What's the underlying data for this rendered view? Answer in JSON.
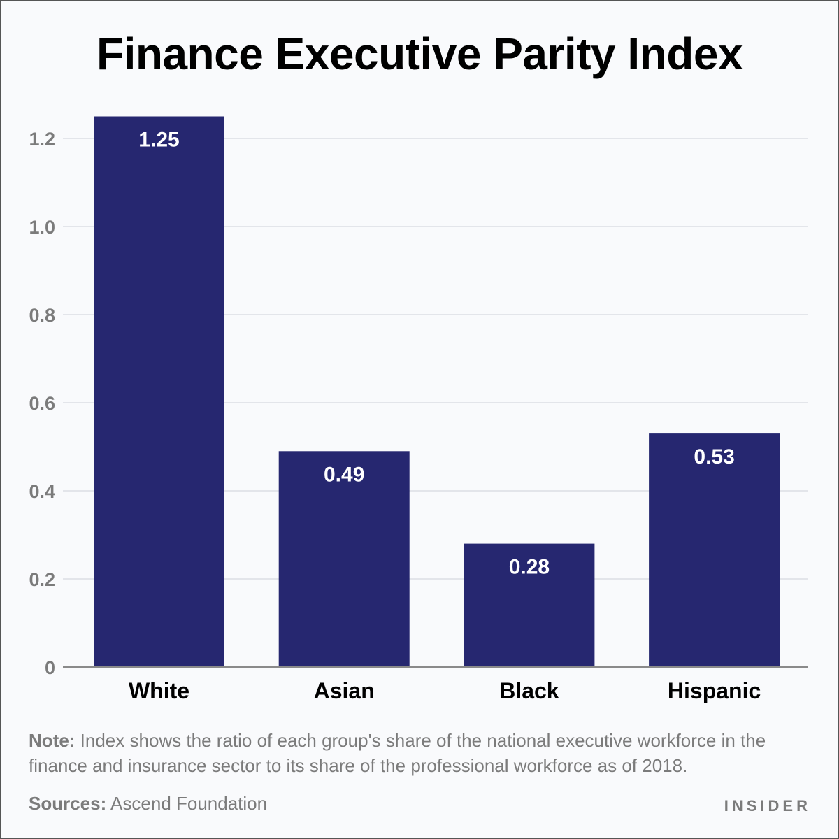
{
  "title": "Finance Executive Parity Index",
  "note": {
    "label": "Note:",
    "text": " Index shows the ratio of each group's share of the national executive workforce in the finance and insurance sector to its share of the professional workforce as of 2018."
  },
  "sources": {
    "label": "Sources:",
    "text": " Ascend Foundation"
  },
  "brand": "INSIDER",
  "chart_data": {
    "type": "bar",
    "title": "Finance Executive Parity Index",
    "categories": [
      "White",
      "Asian",
      "Black",
      "Hispanic"
    ],
    "values": [
      1.25,
      0.49,
      0.28,
      0.53
    ],
    "value_labels": [
      "1.25",
      "0.49",
      "0.28",
      "0.53"
    ],
    "ylim": [
      0,
      1.2
    ],
    "yticks": [
      0,
      0.2,
      0.4,
      0.6,
      0.8,
      1.0,
      1.2
    ],
    "ytick_labels": [
      "0",
      "0.2",
      "0.4",
      "0.6",
      "0.8",
      "1.0",
      "1.2"
    ],
    "xlabel": "",
    "ylabel": "",
    "grid": true,
    "bar_color": "#262770",
    "label_color": "#ffffff",
    "grid_color": "#e3e5ea"
  }
}
